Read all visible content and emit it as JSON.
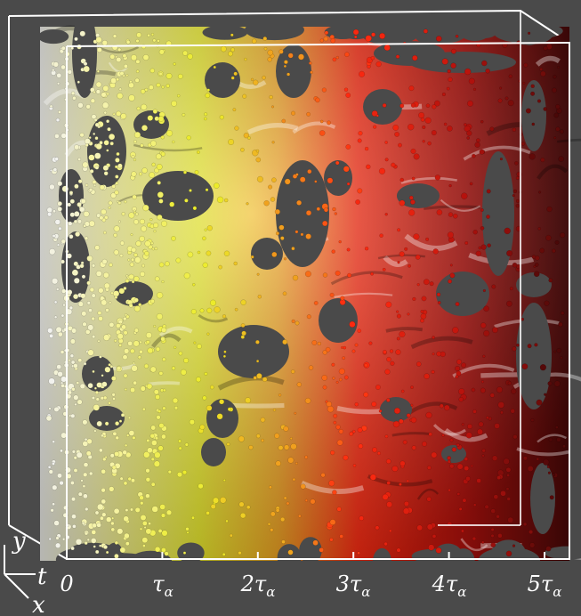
{
  "figure": {
    "background_color": "#4a4a4a",
    "box_color": "#ffffff",
    "colormap": [
      "#f2f2ee",
      "#f6f3a0",
      "#ecec2a",
      "#f0a21e",
      "#ff2a10",
      "#b5120d",
      "#4a0808"
    ],
    "time_axis": {
      "ticks": [
        {
          "base": "0",
          "sub": ""
        },
        {
          "base": "τ",
          "sub": "α"
        },
        {
          "base": "2τ",
          "sub": "α"
        },
        {
          "base": "3τ",
          "sub": "α"
        },
        {
          "base": "4τ",
          "sub": "α"
        },
        {
          "base": "5τ",
          "sub": "α"
        }
      ]
    },
    "orientation_labels": {
      "y": "y",
      "t": "t",
      "x": "x"
    }
  }
}
